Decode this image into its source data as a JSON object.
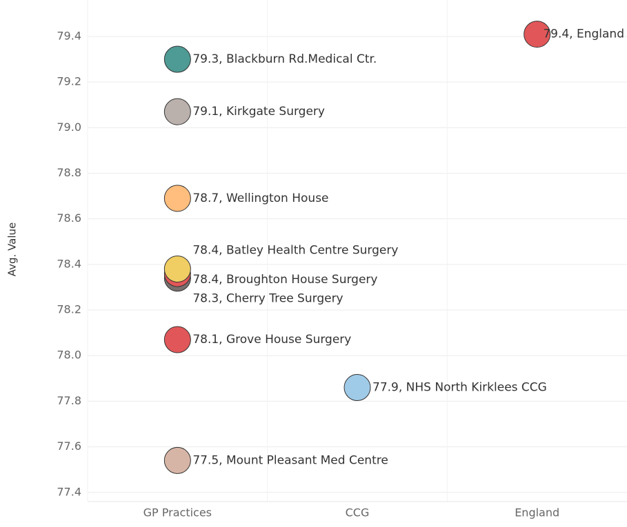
{
  "chart_data": {
    "type": "scatter",
    "y_label": "Avg. Value",
    "categories": [
      "GP Practices",
      "CCG",
      "England"
    ],
    "ylim": [
      77.36,
      79.56
    ],
    "yticks": [
      {
        "value": 77.4,
        "label": "77.4"
      },
      {
        "value": 77.6,
        "label": "77.6"
      },
      {
        "value": 77.8,
        "label": "77.8"
      },
      {
        "value": 78.0,
        "label": "78.0"
      },
      {
        "value": 78.2,
        "label": "78.2"
      },
      {
        "value": 78.4,
        "label": "78.4"
      },
      {
        "value": 78.6,
        "label": "78.6"
      },
      {
        "value": 78.8,
        "label": "78.8"
      },
      {
        "value": 79.0,
        "label": "79.0"
      },
      {
        "value": 79.2,
        "label": "79.2"
      },
      {
        "value": 79.4,
        "label": "79.4"
      }
    ],
    "grid": true,
    "series": [
      {
        "x": "GP Practices",
        "color": "#4e9a94",
        "values": [
          79.3
        ],
        "value_labels": [
          "79.3, Blackburn Rd.Medical Ctr."
        ]
      },
      {
        "x": "GP Practices",
        "color": "#bab0ac",
        "values": [
          79.07
        ],
        "value_labels": [
          "79.1, Kirkgate Surgery"
        ]
      },
      {
        "x": "GP Practices",
        "color": "#ffbe7d",
        "values": [
          78.69
        ],
        "value_labels": [
          "78.7, Wellington House"
        ]
      },
      {
        "x": "GP Practices",
        "color": "#79706e",
        "values": [
          78.34
        ],
        "value_labels": [
          "78.3, Cherry Tree Surgery"
        ]
      },
      {
        "x": "GP Practices",
        "color": "#e15759",
        "values": [
          78.36
        ],
        "value_labels": [
          "78.4, Broughton House Surgery"
        ]
      },
      {
        "x": "GP Practices",
        "color": "#f1ce63",
        "values": [
          78.38
        ],
        "value_labels": [
          "78.4, Batley Health Centre Surgery"
        ]
      },
      {
        "x": "GP Practices",
        "color": "#e15759",
        "values": [
          78.07
        ],
        "value_labels": [
          "78.1, Grove House Surgery"
        ]
      },
      {
        "x": "CCG",
        "color": "#a0cbe8",
        "values": [
          77.86
        ],
        "value_labels": [
          "77.9, NHS North Kirklees CCG"
        ]
      },
      {
        "x": "GP Practices",
        "color": "#d7b5a6",
        "values": [
          77.54
        ],
        "value_labels": [
          "77.5, Mount Pleasant Med Centre"
        ]
      },
      {
        "x": "England",
        "color": "#e15759",
        "values": [
          79.41
        ],
        "value_labels": [
          "79.4, England"
        ]
      }
    ]
  }
}
